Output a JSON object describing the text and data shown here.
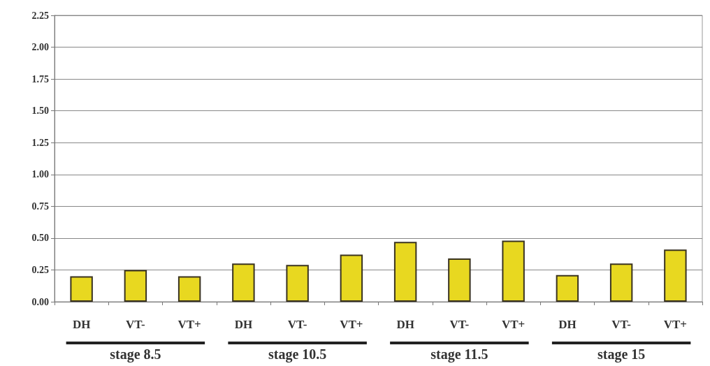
{
  "chart_data": {
    "type": "bar",
    "categories": [
      "DH",
      "VT-",
      "VT+",
      "DH",
      "VT-",
      "VT+",
      "DH",
      "VT-",
      "VT+",
      "DH",
      "VT-",
      "VT+"
    ],
    "values": [
      0.2,
      0.25,
      0.2,
      0.3,
      0.29,
      0.37,
      0.47,
      0.34,
      0.48,
      0.21,
      0.3,
      0.41
    ],
    "color": "#e8d820",
    "ylim": [
      0,
      2.25
    ],
    "yticks": [
      {
        "value": 0,
        "label": "0.00"
      },
      {
        "value": 0.25,
        "label": "0.25"
      },
      {
        "value": 0.5,
        "label": "0.50"
      },
      {
        "value": 0.75,
        "label": "0.75"
      },
      {
        "value": 1,
        "label": "1.00"
      },
      {
        "value": 1.25,
        "label": "1.25"
      },
      {
        "value": 1.5,
        "label": "1.50"
      },
      {
        "value": 1.75,
        "label": "1.75"
      },
      {
        "value": 2,
        "label": "2.00"
      },
      {
        "value": 2.25,
        "label": "2.25"
      }
    ],
    "grid": "y",
    "annotations": [
      "stage 8.5",
      "stage 10.5",
      "stage 11.5",
      "stage 15"
    ]
  }
}
